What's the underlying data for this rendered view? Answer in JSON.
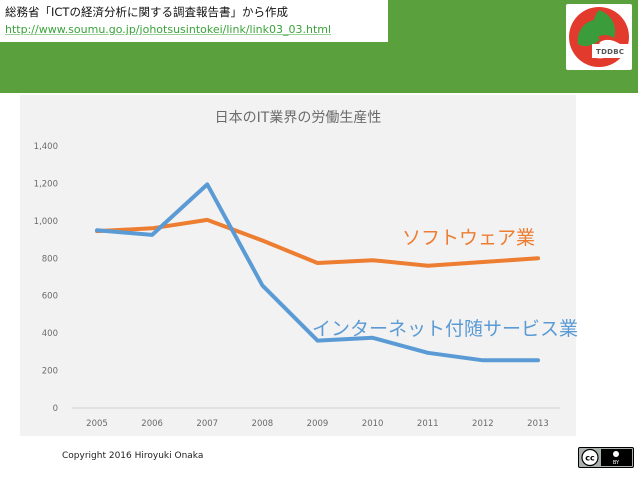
{
  "source": {
    "title": "総務省「ICTの経済分析に関する調査報告書」から作成",
    "url": "http://www.soumu.go.jp/johotsusintokei/link/link03_03.html"
  },
  "logo": {
    "text": "TDDBC"
  },
  "copyright": "Copyright 2016 Hiroyuki Onaka",
  "license": {
    "label": "cc",
    "sub": "BY"
  },
  "colors": {
    "band": "#5aa03c",
    "software": "#ed7d31",
    "internet": "#5b9bd5"
  },
  "chart_data": {
    "type": "line",
    "title": "日本のIT業界の労働生産性",
    "x": [
      "2005",
      "2006",
      "2007",
      "2008",
      "2009",
      "2010",
      "2011",
      "2012",
      "2013"
    ],
    "ylim": [
      0,
      1400
    ],
    "yticks": [
      "0",
      "200",
      "400",
      "600",
      "800",
      "1,000",
      "1,200",
      "1,400"
    ],
    "ytick_values": [
      0,
      200,
      400,
      600,
      800,
      1000,
      1200,
      1400
    ],
    "grid": false,
    "series": [
      {
        "name": "ソフトウェア業",
        "color": "#ed7d31",
        "values": [
          945,
          960,
          1005,
          895,
          775,
          790,
          760,
          780,
          800
        ]
      },
      {
        "name": "インターネット付随サービス業",
        "color": "#5b9bd5",
        "values": [
          950,
          925,
          1195,
          655,
          360,
          375,
          295,
          255,
          255
        ]
      }
    ]
  }
}
